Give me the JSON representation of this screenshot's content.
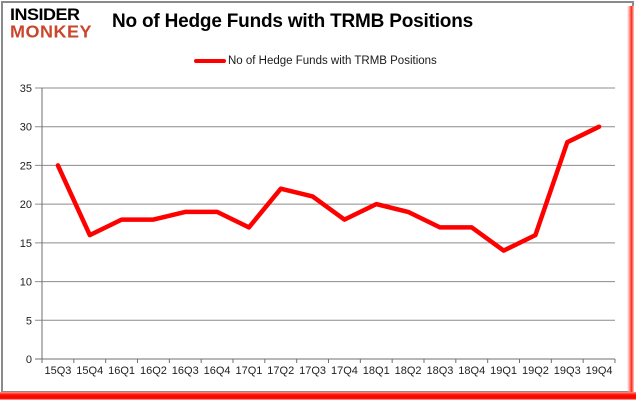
{
  "logo": {
    "line1": "INSIDER",
    "line2": "MONKEY"
  },
  "header": {
    "title": "No of Hedge Funds with TRMB Positions"
  },
  "legend": {
    "label": "No of Hedge Funds with TRMB Positions"
  },
  "chart_data": {
    "type": "line",
    "title": "No of Hedge Funds with TRMB Positions",
    "categories": [
      "15Q3",
      "15Q4",
      "16Q1",
      "16Q2",
      "16Q3",
      "16Q4",
      "17Q1",
      "17Q2",
      "17Q3",
      "17Q4",
      "18Q1",
      "18Q2",
      "18Q3",
      "18Q4",
      "19Q1",
      "19Q2",
      "19Q3",
      "19Q4"
    ],
    "series": [
      {
        "name": "No of Hedge Funds with TRMB Positions",
        "values": [
          25,
          16,
          18,
          18,
          19,
          19,
          17,
          22,
          21,
          18,
          20,
          19,
          17,
          17,
          14,
          16,
          28,
          30
        ]
      }
    ],
    "xlabel": "",
    "ylabel": "",
    "ylim": [
      0,
      35
    ],
    "yticks": [
      0,
      5,
      10,
      15,
      20,
      25,
      30,
      35
    ],
    "grid": true,
    "legend_position": "top",
    "line_color": "#ff0000"
  },
  "colors": {
    "line_red": "#ff0000",
    "logo_black": "#000000",
    "logo_red": "#c9452c",
    "card_border_gray": "#8a8a8a",
    "gridline_gray": "#8c8c8c",
    "axis_gray": "#6f6f6f",
    "axis_text": "#1f1f1f",
    "bottom_bar_red": "#ff0000"
  }
}
